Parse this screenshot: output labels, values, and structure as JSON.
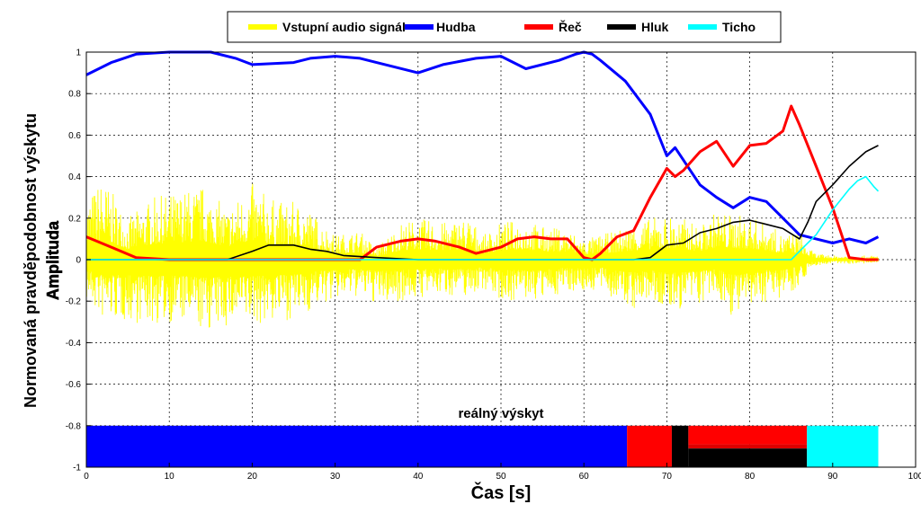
{
  "chart_data": {
    "type": "line",
    "title": "",
    "xlabel": "Čas [s]",
    "ylabel": "Normovaná pravděpodobnost výskytu",
    "ylabel2": "Amplituda",
    "xlim": [
      0,
      100
    ],
    "ylim": [
      -1,
      1
    ],
    "grid": true,
    "legend_position": "top",
    "x_ticks": [
      "0",
      "10",
      "20",
      "30",
      "40",
      "50",
      "60",
      "70",
      "80",
      "90",
      "100"
    ],
    "y_ticks": [
      "1",
      "0.8",
      "0.6",
      "0.4",
      "0.2",
      "0",
      "-0.2",
      "-0.4",
      "-0.6",
      "-0.8",
      "-1"
    ],
    "legend": [
      {
        "name": "Vstupní audio signál",
        "color": "#ffff00"
      },
      {
        "name": "Hudba",
        "color": "#0000ff"
      },
      {
        "name": "Řeč",
        "color": "#ff0000"
      },
      {
        "name": "Hluk",
        "color": "#000000"
      },
      {
        "name": "Ticho",
        "color": "#00ffff"
      }
    ],
    "audio_envelope": {
      "name": "Vstupní audio signál",
      "color": "#ffff00",
      "x": [
        0,
        2,
        5,
        8,
        11,
        14,
        17,
        20,
        23,
        26,
        28,
        30,
        33,
        35,
        38,
        40,
        43,
        46,
        48,
        50,
        53,
        55,
        58,
        60,
        62,
        64,
        66,
        68,
        70,
        72,
        74,
        76,
        78,
        80,
        82,
        84,
        86,
        87,
        88,
        90,
        92,
        94,
        95.5
      ],
      "upper": [
        0.3,
        0.4,
        0.2,
        0.3,
        0.33,
        0.36,
        0.25,
        0.37,
        0.28,
        0.28,
        0.2,
        0.12,
        0.14,
        0.06,
        0.18,
        0.2,
        0.18,
        0.21,
        0.12,
        0.18,
        0.2,
        0.16,
        0.15,
        0.1,
        0.12,
        0.14,
        0.18,
        0.2,
        0.22,
        0.2,
        0.16,
        0.24,
        0.22,
        0.21,
        0.18,
        0.12,
        0.14,
        0.06,
        0.03,
        0.02,
        0.02,
        0.02,
        0.02
      ],
      "lower": [
        -0.2,
        -0.3,
        -0.3,
        -0.32,
        -0.3,
        -0.35,
        -0.33,
        -0.32,
        -0.3,
        -0.28,
        -0.22,
        -0.2,
        -0.18,
        -0.22,
        -0.2,
        -0.19,
        -0.17,
        -0.18,
        -0.14,
        -0.2,
        -0.2,
        -0.2,
        -0.15,
        -0.16,
        -0.15,
        -0.2,
        -0.25,
        -0.2,
        -0.26,
        -0.24,
        -0.22,
        -0.18,
        -0.28,
        -0.26,
        -0.2,
        -0.18,
        -0.13,
        -0.06,
        -0.03,
        -0.02,
        -0.02,
        -0.02,
        -0.02
      ]
    },
    "series": [
      {
        "name": "Hudba",
        "color": "#0000ff",
        "x": [
          0,
          3,
          6,
          10,
          15,
          18,
          20,
          25,
          27,
          30,
          33,
          35,
          40,
          43,
          47,
          50,
          53,
          57,
          59,
          60,
          61,
          62,
          65,
          68,
          70,
          71,
          72,
          74,
          76,
          78,
          80,
          82,
          84,
          86,
          88,
          90,
          92,
          94,
          95.5
        ],
        "y": [
          0.89,
          0.95,
          0.99,
          1.0,
          1.0,
          0.97,
          0.94,
          0.95,
          0.97,
          0.98,
          0.97,
          0.95,
          0.9,
          0.94,
          0.97,
          0.98,
          0.92,
          0.96,
          0.99,
          1.0,
          0.99,
          0.96,
          0.86,
          0.7,
          0.5,
          0.54,
          0.48,
          0.36,
          0.3,
          0.25,
          0.3,
          0.28,
          0.2,
          0.12,
          0.1,
          0.08,
          0.1,
          0.08,
          0.11
        ]
      },
      {
        "name": "Řeč",
        "color": "#ff0000",
        "x": [
          0,
          3,
          6,
          10,
          20,
          30,
          33,
          35,
          38,
          40,
          42,
          45,
          47,
          50,
          52,
          54,
          56,
          58,
          60,
          61,
          62,
          64,
          66,
          68,
          70,
          71,
          72,
          74,
          76,
          78,
          80,
          82,
          84,
          85,
          86,
          88,
          90,
          92,
          94,
          95.5
        ],
        "y": [
          0.11,
          0.06,
          0.01,
          0.0,
          0.0,
          0.0,
          0.0,
          0.06,
          0.09,
          0.1,
          0.09,
          0.06,
          0.03,
          0.06,
          0.1,
          0.11,
          0.1,
          0.1,
          0.01,
          0.0,
          0.03,
          0.11,
          0.14,
          0.3,
          0.44,
          0.4,
          0.43,
          0.52,
          0.57,
          0.45,
          0.55,
          0.56,
          0.62,
          0.74,
          0.65,
          0.45,
          0.25,
          0.01,
          0.0,
          0.0
        ]
      },
      {
        "name": "Hluk",
        "color": "#000000",
        "x": [
          0,
          17,
          20,
          22,
          25,
          27,
          29,
          31,
          35,
          40,
          60,
          66,
          68,
          70,
          72,
          74,
          76,
          78,
          80,
          82,
          84,
          86,
          87,
          88,
          90,
          92,
          94,
          95.5
        ],
        "y": [
          0.0,
          0.0,
          0.04,
          0.07,
          0.07,
          0.05,
          0.04,
          0.02,
          0.01,
          0.0,
          0.0,
          0.0,
          0.01,
          0.07,
          0.08,
          0.13,
          0.15,
          0.18,
          0.19,
          0.17,
          0.15,
          0.1,
          0.18,
          0.28,
          0.36,
          0.45,
          0.52,
          0.55
        ]
      },
      {
        "name": "Ticho",
        "color": "#00ffff",
        "x": [
          0,
          85,
          87,
          88,
          90,
          92,
          93,
          94,
          95,
          95.5
        ],
        "y": [
          0.0,
          0.0,
          0.08,
          0.12,
          0.24,
          0.34,
          0.38,
          0.4,
          0.35,
          0.33
        ]
      }
    ],
    "real_occurrence": {
      "label": "reálný výskyt",
      "top": -0.8,
      "bottom": -1,
      "segments": [
        {
          "x0": 0,
          "x1": 65.2,
          "y0": -1,
          "y1": -0.8,
          "color": "#0000ff"
        },
        {
          "x0": 65.2,
          "x1": 70.6,
          "y0": -1,
          "y1": -0.8,
          "color": "#ff0000"
        },
        {
          "x0": 70.6,
          "x1": 72.6,
          "y0": -1,
          "y1": -0.8,
          "color": "#000000"
        },
        {
          "x0": 72.6,
          "x1": 86.9,
          "y0": -0.89,
          "y1": -0.8,
          "color": "#ff0000"
        },
        {
          "x0": 72.6,
          "x1": 86.9,
          "y0": -0.91,
          "y1": -0.89,
          "color": "#dd0000"
        },
        {
          "x0": 72.6,
          "x1": 86.9,
          "y0": -1,
          "y1": -0.91,
          "color": "#000000"
        },
        {
          "x0": 86.9,
          "x1": 95.5,
          "y0": -1,
          "y1": -0.8,
          "color": "#00ffff"
        }
      ]
    }
  }
}
